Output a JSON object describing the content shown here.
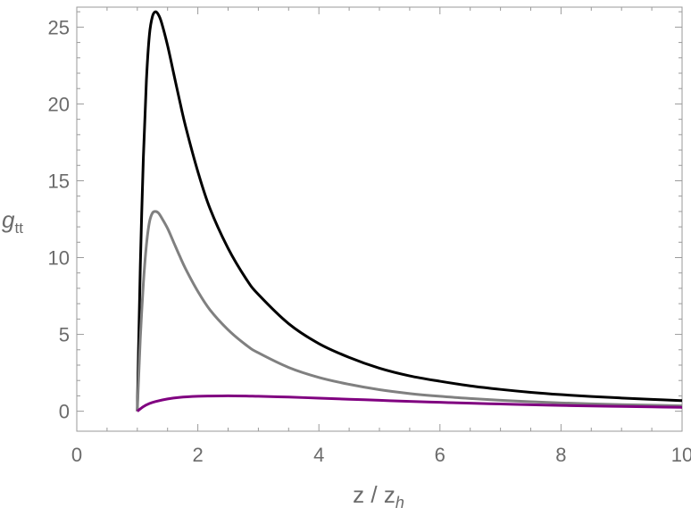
{
  "chart_data": {
    "type": "line",
    "xlabel": {
      "main": "z / z",
      "sub": "h"
    },
    "ylabel": {
      "main": "g",
      "sub": "tt"
    },
    "xlim": [
      0,
      10
    ],
    "ylim": [
      -1.3,
      26.3
    ],
    "x_ticks": [
      0,
      2,
      4,
      6,
      8,
      10
    ],
    "x_minor_ticks": [
      0.5,
      1,
      1.5,
      2.5,
      3,
      3.5,
      4.5,
      5,
      5.5,
      6.5,
      7,
      7.5,
      8.5,
      9,
      9.5
    ],
    "y_ticks": [
      0,
      5,
      10,
      15,
      20,
      25
    ],
    "y_minor_ticks": [
      1,
      2,
      3,
      4,
      6,
      7,
      8,
      9,
      11,
      12,
      13,
      14,
      16,
      17,
      18,
      19,
      21,
      22,
      23,
      24,
      26
    ],
    "tick_labels_x": [
      "0",
      "2",
      "4",
      "6",
      "8",
      "10"
    ],
    "tick_labels_y": [
      "0",
      "5",
      "10",
      "15",
      "20",
      "25"
    ],
    "grid": false,
    "legend": "none",
    "series": [
      {
        "color": "#000000",
        "x": [
          1.0,
          1.02,
          1.05,
          1.1,
          1.15,
          1.2,
          1.25,
          1.3,
          1.35,
          1.4,
          1.5,
          1.6,
          1.7,
          1.8,
          2.0,
          2.2,
          2.5,
          2.8,
          3.0,
          3.5,
          4.0,
          4.5,
          5.0,
          5.5,
          6.0,
          6.5,
          7.0,
          7.5,
          8.0,
          8.5,
          9.0,
          9.5,
          10.0
        ],
        "y": [
          0.0,
          4.0,
          9.5,
          16.5,
          21.5,
          24.5,
          25.7,
          26.0,
          25.8,
          25.3,
          23.8,
          22.0,
          20.2,
          18.5,
          15.6,
          13.2,
          10.6,
          8.6,
          7.6,
          5.7,
          4.4,
          3.5,
          2.8,
          2.3,
          1.95,
          1.65,
          1.42,
          1.23,
          1.08,
          0.96,
          0.86,
          0.77,
          0.69
        ]
      },
      {
        "color": "#808080",
        "x": [
          1.0,
          1.02,
          1.05,
          1.1,
          1.15,
          1.2,
          1.25,
          1.3,
          1.35,
          1.4,
          1.5,
          1.6,
          1.7,
          1.8,
          2.0,
          2.2,
          2.5,
          2.8,
          3.0,
          3.5,
          4.0,
          4.5,
          5.0,
          5.5,
          6.0,
          6.5,
          7.0,
          7.5,
          8.0,
          8.5,
          9.0,
          9.5,
          10.0
        ],
        "y": [
          0.0,
          2.0,
          4.8,
          8.3,
          10.8,
          12.3,
          12.9,
          13.0,
          12.9,
          12.6,
          11.9,
          11.0,
          10.1,
          9.25,
          7.8,
          6.6,
          5.3,
          4.3,
          3.8,
          2.85,
          2.2,
          1.75,
          1.4,
          1.15,
          0.97,
          0.83,
          0.71,
          0.62,
          0.54,
          0.48,
          0.43,
          0.39,
          0.35
        ]
      },
      {
        "color": "#800080",
        "x": [
          1.0,
          1.1,
          1.2,
          1.3,
          1.5,
          1.7,
          2.0,
          2.2,
          2.5,
          2.8,
          3.0,
          3.5,
          4.0,
          4.5,
          5.0,
          5.5,
          6.0,
          6.5,
          7.0,
          7.5,
          8.0,
          8.5,
          9.0,
          9.5,
          10.0
        ],
        "y": [
          0.0,
          0.3,
          0.5,
          0.63,
          0.8,
          0.9,
          0.97,
          0.99,
          1.0,
          0.99,
          0.97,
          0.92,
          0.85,
          0.78,
          0.71,
          0.64,
          0.58,
          0.52,
          0.47,
          0.42,
          0.38,
          0.34,
          0.31,
          0.28,
          0.25
        ]
      }
    ]
  }
}
